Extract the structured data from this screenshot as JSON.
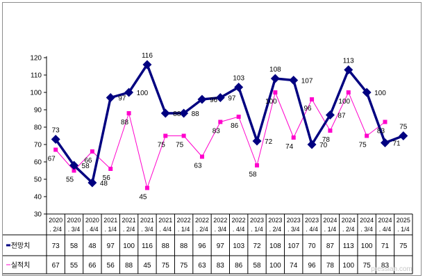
{
  "chart_data": {
    "type": "line",
    "categories": [
      [
        "2020",
        ". 2/4"
      ],
      [
        "2020",
        ". 3/4"
      ],
      [
        "2020",
        ". 4/4"
      ],
      [
        "2021",
        ". 1/4"
      ],
      [
        "2021",
        ". 2/4"
      ],
      [
        "2021",
        ". 3/4"
      ],
      [
        "2021",
        ". 4/4"
      ],
      [
        "2022",
        ". 1/4"
      ],
      [
        "2022",
        ". 2/4"
      ],
      [
        "2022",
        ". 3/4"
      ],
      [
        "2022",
        ". 4/4"
      ],
      [
        "2023",
        ". 1/4"
      ],
      [
        "2023",
        ". 2/4"
      ],
      [
        "2023",
        ". 3/4"
      ],
      [
        "2023",
        ". 4/4"
      ],
      [
        "2024",
        ". 1/4"
      ],
      [
        "2024",
        ". 2/4"
      ],
      [
        "2024",
        ". 3/4"
      ],
      [
        "2024",
        ". 4/4"
      ],
      [
        "2025",
        ". 1/4"
      ]
    ],
    "series": [
      {
        "name": "전망치",
        "color": "#000080",
        "values": [
          73,
          58,
          48,
          97,
          100,
          116,
          88,
          88,
          96,
          97,
          103,
          72,
          108,
          107,
          70,
          87,
          113,
          100,
          71,
          75
        ]
      },
      {
        "name": "실적치",
        "color": "#ff00cc",
        "values": [
          67,
          55,
          66,
          56,
          88,
          45,
          75,
          75,
          63,
          83,
          86,
          58,
          100,
          74,
          96,
          78,
          100,
          75,
          83,
          null
        ],
        "table_values": [
          "67",
          "55",
          "66",
          "56",
          "88",
          "45",
          "75",
          "75",
          "63",
          "83",
          "86",
          "58",
          "100",
          "74",
          "96",
          "78",
          "100",
          "75",
          "83",
          ""
        ]
      }
    ],
    "yticks": [
      30,
      40,
      50,
      60,
      70,
      80,
      90,
      100,
      110,
      120
    ],
    "ylim": [
      30,
      120
    ],
    "grid": false,
    "legend": "data table"
  },
  "watermark": "pressian.com"
}
